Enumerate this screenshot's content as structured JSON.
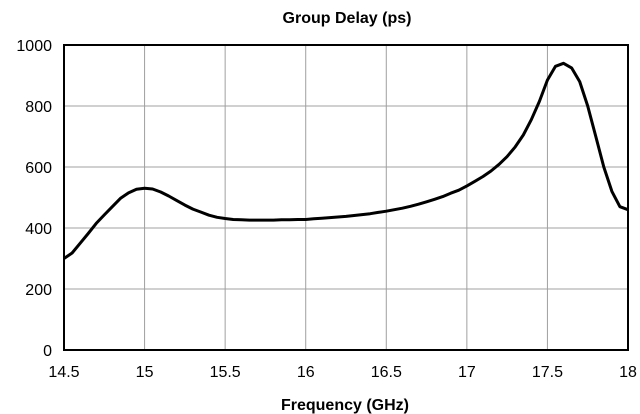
{
  "chart_data": {
    "type": "line",
    "title": "Group Delay (ps)",
    "xlabel": "Frequency (GHz)",
    "ylabel": "",
    "xlim": [
      14.5,
      18
    ],
    "ylim": [
      0,
      1000
    ],
    "xticks": [
      14.5,
      15,
      15.5,
      16,
      16.5,
      17,
      17.5,
      18
    ],
    "yticks": [
      0,
      200,
      400,
      600,
      800,
      1000
    ],
    "xtick_labels": [
      "14.5",
      "15",
      "15.5",
      "16",
      "16.5",
      "17",
      "17.5",
      "18"
    ],
    "ytick_labels": [
      "0",
      "200",
      "400",
      "600",
      "800",
      "1000"
    ],
    "grid": true,
    "legend": "none",
    "series": [
      {
        "color": "#000000",
        "x": [
          14.5,
          14.55,
          14.6,
          14.65,
          14.7,
          14.75,
          14.8,
          14.85,
          14.9,
          14.95,
          15.0,
          15.05,
          15.1,
          15.15,
          15.2,
          15.25,
          15.3,
          15.35,
          15.4,
          15.45,
          15.5,
          15.55,
          15.6,
          15.65,
          15.7,
          15.75,
          15.8,
          15.85,
          15.9,
          15.95,
          16.0,
          16.05,
          16.1,
          16.15,
          16.2,
          16.25,
          16.3,
          16.35,
          16.4,
          16.45,
          16.5,
          16.55,
          16.6,
          16.65,
          16.7,
          16.75,
          16.8,
          16.85,
          16.9,
          16.95,
          17.0,
          17.05,
          17.1,
          17.15,
          17.2,
          17.25,
          17.3,
          17.35,
          17.4,
          17.45,
          17.5,
          17.55,
          17.6,
          17.65,
          17.7,
          17.75,
          17.8,
          17.85,
          17.9,
          17.95,
          18.0
        ],
        "values": [
          300,
          318,
          350,
          382,
          415,
          443,
          470,
          497,
          515,
          527,
          530,
          528,
          518,
          505,
          490,
          475,
          462,
          452,
          442,
          435,
          431,
          428,
          427,
          426,
          426,
          426,
          426,
          427,
          427,
          428,
          428,
          430,
          432,
          434,
          436,
          438,
          441,
          444,
          447,
          451,
          455,
          460,
          465,
          471,
          478,
          486,
          494,
          503,
          514,
          524,
          538,
          553,
          569,
          587,
          609,
          634,
          666,
          705,
          755,
          815,
          885,
          930,
          940,
          925,
          880,
          800,
          700,
          600,
          520,
          470,
          460
        ]
      }
    ]
  }
}
